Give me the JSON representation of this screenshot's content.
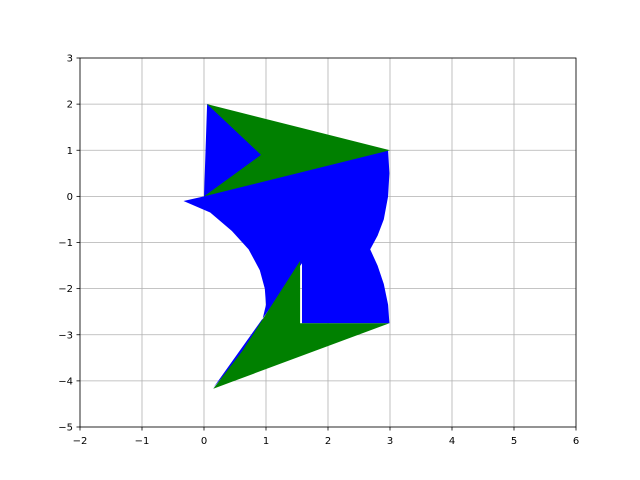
{
  "chart_data": {
    "type": "area",
    "title": "",
    "xlabel": "",
    "ylabel": "",
    "xlim": [
      -2,
      6
    ],
    "ylim": [
      -5,
      3
    ],
    "xticks": [
      -2,
      -1,
      0,
      1,
      2,
      3,
      4,
      5,
      6
    ],
    "yticks": [
      -5,
      -4,
      -3,
      -2,
      -1,
      0,
      1,
      2,
      3
    ],
    "xtick_labels": [
      "−2",
      "−1",
      "0",
      "1",
      "2",
      "3",
      "4",
      "5",
      "6"
    ],
    "ytick_labels": [
      "−5",
      "−4",
      "−3",
      "−2",
      "−1",
      "0",
      "1",
      "2",
      "3"
    ],
    "grid": true,
    "shapes": [
      {
        "name": "blue-region",
        "color": "#0000ff",
        "points": [
          [
            0.05,
            2.0
          ],
          [
            0.3,
            1.85
          ],
          [
            0.55,
            1.6
          ],
          [
            0.75,
            1.3
          ],
          [
            0.9,
            0.95
          ],
          [
            2.97,
            1.0
          ],
          [
            2.99,
            0.5
          ],
          [
            2.97,
            0.0
          ],
          [
            2.9,
            -0.5
          ],
          [
            2.8,
            -0.85
          ],
          [
            2.68,
            -1.15
          ],
          [
            2.8,
            -1.5
          ],
          [
            2.9,
            -1.9
          ],
          [
            2.97,
            -2.35
          ],
          [
            2.99,
            -2.75
          ],
          [
            1.58,
            -2.75
          ],
          [
            1.58,
            -1.45
          ],
          [
            0.15,
            -4.15
          ],
          [
            0.5,
            -3.6
          ],
          [
            0.75,
            -3.2
          ],
          [
            0.92,
            -2.8
          ],
          [
            1.0,
            -2.35
          ],
          [
            0.98,
            -2.0
          ],
          [
            0.9,
            -1.6
          ],
          [
            0.72,
            -1.15
          ],
          [
            0.45,
            -0.75
          ],
          [
            0.1,
            -0.35
          ],
          [
            -0.33,
            -0.1
          ],
          [
            0.0,
            0.0
          ]
        ]
      },
      {
        "name": "green-upper",
        "color": "#008000",
        "points": [
          [
            0.05,
            2.0
          ],
          [
            3.0,
            1.0
          ],
          [
            0.0,
            0.0
          ],
          [
            0.92,
            0.9
          ]
        ]
      },
      {
        "name": "green-lower",
        "color": "#008000",
        "points": [
          [
            1.55,
            -1.4
          ],
          [
            1.55,
            -2.75
          ],
          [
            2.99,
            -2.75
          ],
          [
            0.15,
            -4.17
          ],
          [
            0.62,
            -3.35
          ]
        ]
      }
    ]
  }
}
